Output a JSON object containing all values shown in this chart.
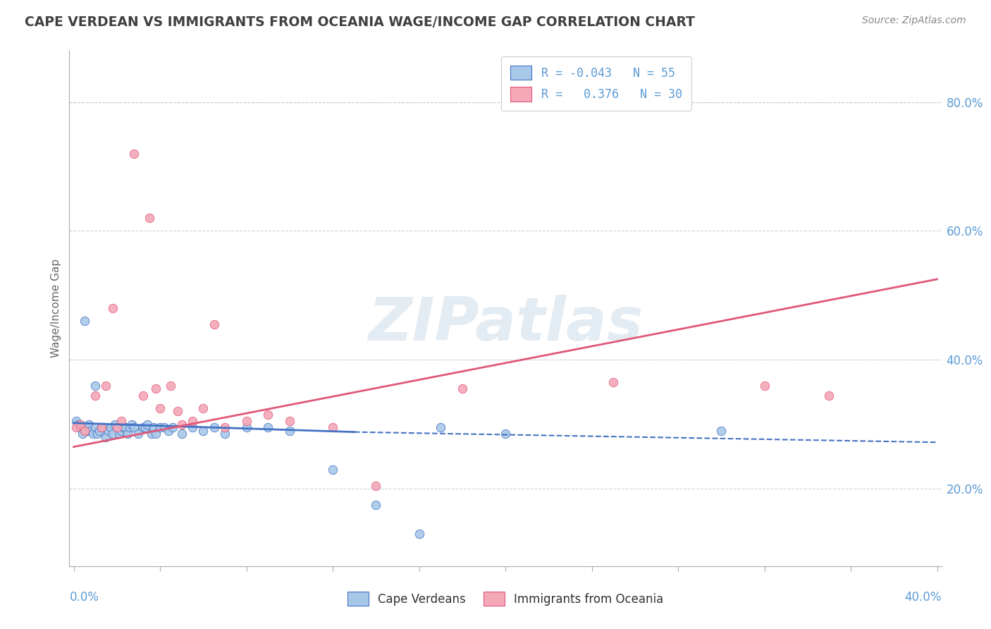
{
  "title": "CAPE VERDEAN VS IMMIGRANTS FROM OCEANIA WAGE/INCOME GAP CORRELATION CHART",
  "source": "Source: ZipAtlas.com",
  "ylabel": "Wage/Income Gap",
  "right_ytick_vals": [
    0.2,
    0.4,
    0.6,
    0.8
  ],
  "legend_blue_label": "R = -0.043   N = 55",
  "legend_pink_label": "R =   0.376   N = 30",
  "legend_bottom_blue": "Cape Verdeans",
  "legend_bottom_pink": "Immigrants from Oceania",
  "watermark": "ZIPatlas",
  "blue_scatter": [
    [
      0.001,
      0.305
    ],
    [
      0.002,
      0.3
    ],
    [
      0.003,
      0.295
    ],
    [
      0.004,
      0.285
    ],
    [
      0.005,
      0.295
    ],
    [
      0.006,
      0.29
    ],
    [
      0.007,
      0.3
    ],
    [
      0.008,
      0.29
    ],
    [
      0.009,
      0.285
    ],
    [
      0.01,
      0.295
    ],
    [
      0.011,
      0.285
    ],
    [
      0.012,
      0.29
    ],
    [
      0.013,
      0.295
    ],
    [
      0.014,
      0.295
    ],
    [
      0.015,
      0.28
    ],
    [
      0.016,
      0.29
    ],
    [
      0.017,
      0.295
    ],
    [
      0.018,
      0.285
    ],
    [
      0.019,
      0.3
    ],
    [
      0.02,
      0.295
    ],
    [
      0.021,
      0.285
    ],
    [
      0.022,
      0.29
    ],
    [
      0.023,
      0.295
    ],
    [
      0.024,
      0.295
    ],
    [
      0.025,
      0.285
    ],
    [
      0.026,
      0.295
    ],
    [
      0.027,
      0.3
    ],
    [
      0.028,
      0.295
    ],
    [
      0.03,
      0.285
    ],
    [
      0.032,
      0.295
    ],
    [
      0.033,
      0.295
    ],
    [
      0.034,
      0.3
    ],
    [
      0.036,
      0.285
    ],
    [
      0.037,
      0.295
    ],
    [
      0.038,
      0.285
    ],
    [
      0.04,
      0.295
    ],
    [
      0.042,
      0.295
    ],
    [
      0.044,
      0.29
    ],
    [
      0.046,
      0.295
    ],
    [
      0.05,
      0.285
    ],
    [
      0.055,
      0.295
    ],
    [
      0.06,
      0.29
    ],
    [
      0.065,
      0.295
    ],
    [
      0.07,
      0.285
    ],
    [
      0.005,
      0.46
    ],
    [
      0.01,
      0.36
    ],
    [
      0.08,
      0.295
    ],
    [
      0.09,
      0.295
    ],
    [
      0.1,
      0.29
    ],
    [
      0.12,
      0.23
    ],
    [
      0.14,
      0.175
    ],
    [
      0.16,
      0.13
    ],
    [
      0.17,
      0.295
    ],
    [
      0.2,
      0.285
    ],
    [
      0.3,
      0.29
    ]
  ],
  "pink_scatter": [
    [
      0.001,
      0.295
    ],
    [
      0.003,
      0.3
    ],
    [
      0.005,
      0.29
    ],
    [
      0.01,
      0.345
    ],
    [
      0.013,
      0.295
    ],
    [
      0.015,
      0.36
    ],
    [
      0.018,
      0.48
    ],
    [
      0.02,
      0.295
    ],
    [
      0.022,
      0.305
    ],
    [
      0.028,
      0.72
    ],
    [
      0.032,
      0.345
    ],
    [
      0.035,
      0.62
    ],
    [
      0.038,
      0.355
    ],
    [
      0.04,
      0.325
    ],
    [
      0.045,
      0.36
    ],
    [
      0.048,
      0.32
    ],
    [
      0.05,
      0.3
    ],
    [
      0.055,
      0.305
    ],
    [
      0.06,
      0.325
    ],
    [
      0.065,
      0.455
    ],
    [
      0.07,
      0.295
    ],
    [
      0.08,
      0.305
    ],
    [
      0.09,
      0.315
    ],
    [
      0.1,
      0.305
    ],
    [
      0.12,
      0.295
    ],
    [
      0.14,
      0.205
    ],
    [
      0.18,
      0.355
    ],
    [
      0.25,
      0.365
    ],
    [
      0.32,
      0.36
    ],
    [
      0.35,
      0.345
    ]
  ],
  "blue_trend_solid": {
    "x": [
      0.0,
      0.13
    ],
    "y": [
      0.302,
      0.288
    ]
  },
  "blue_trend_dashed": {
    "x": [
      0.13,
      0.4
    ],
    "y": [
      0.288,
      0.272
    ]
  },
  "pink_trend": {
    "x": [
      0.0,
      0.4
    ],
    "y": [
      0.265,
      0.525
    ]
  },
  "xlim": [
    -0.002,
    0.402
  ],
  "ylim": [
    0.08,
    0.88
  ],
  "blue_color": "#A8C8E8",
  "pink_color": "#F4A8B8",
  "blue_trend_color": "#4472C4",
  "pink_trend_color": "#E05878",
  "bg_color": "#FFFFFF",
  "grid_color": "#CCCCCC",
  "title_color": "#404040",
  "right_axis_color": "#5B9BD5",
  "watermark_color": "#C8D8E8"
}
